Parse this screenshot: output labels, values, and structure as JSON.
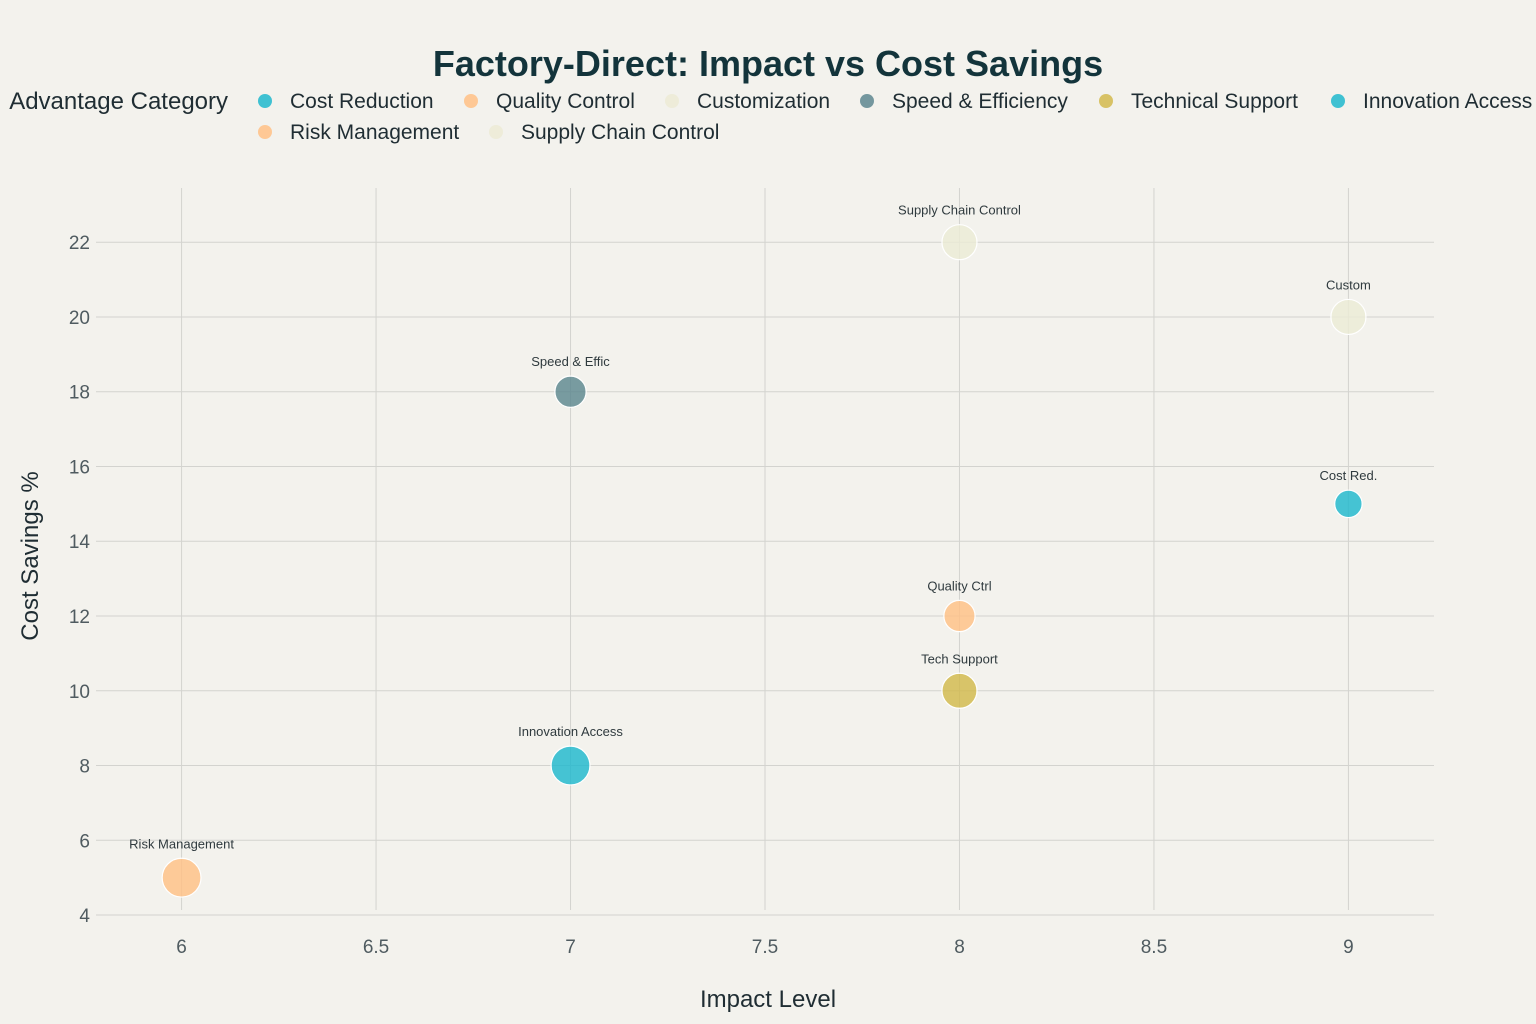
{
  "chart_data": {
    "type": "scatter",
    "title": "Factory-Direct: Impact vs Cost Savings",
    "xlabel": "Impact Level",
    "ylabel": "Cost Savings %",
    "xlim": [
      5.78,
      9.22
    ],
    "ylim": [
      3.6,
      23.45
    ],
    "x_ticks": [
      6,
      6.5,
      7,
      7.5,
      8,
      8.5,
      9
    ],
    "x_tick_labels": [
      "6",
      "6.5",
      "7",
      "7.5",
      "8",
      "8.5",
      "9"
    ],
    "y_ticks": [
      4,
      6,
      8,
      10,
      12,
      14,
      16,
      18,
      20,
      22
    ],
    "y_tick_labels": [
      "4",
      "6",
      "8",
      "10",
      "12",
      "14",
      "16",
      "18",
      "20",
      "22"
    ],
    "grid": true,
    "legend": {
      "title": "Advantage Category",
      "placement": "top",
      "entries": [
        {
          "name": "Cost Reduction",
          "color": "#1FB8CD"
        },
        {
          "name": "Quality Control",
          "color": "#FFC185"
        },
        {
          "name": "Customization",
          "color": "#ECEBD5"
        },
        {
          "name": "Speed & Efficiency",
          "color": "#5D878F"
        },
        {
          "name": "Technical Support",
          "color": "#D2BA4C"
        },
        {
          "name": "Innovation Access",
          "color": "#1FB8CD"
        },
        {
          "name": "Risk Management",
          "color": "#FFC185"
        },
        {
          "name": "Supply Chain Control",
          "color": "#ECEBD5"
        }
      ]
    },
    "series": [
      {
        "name": "Cost Reduction",
        "color": "#1FB8CD",
        "x": 9,
        "y": 15,
        "size": 3,
        "label": "Cost Red."
      },
      {
        "name": "Quality Control",
        "color": "#FFC185",
        "x": 8,
        "y": 12,
        "size": 4,
        "label": "Quality Ctrl"
      },
      {
        "name": "Customization",
        "color": "#ECEBD5",
        "x": 9,
        "y": 20,
        "size": 5,
        "label": "Custom"
      },
      {
        "name": "Speed & Efficiency",
        "color": "#5D878F",
        "x": 7,
        "y": 18,
        "size": 4,
        "label": "Speed & Effic"
      },
      {
        "name": "Technical Support",
        "color": "#D2BA4C",
        "x": 8,
        "y": 10,
        "size": 5,
        "label": "Tech Support"
      },
      {
        "name": "Innovation Access",
        "color": "#1FB8CD",
        "x": 7,
        "y": 8,
        "size": 6,
        "label": "Innovation Access"
      },
      {
        "name": "Risk Management",
        "color": "#FFC185",
        "x": 6,
        "y": 5,
        "size": 6,
        "label": "Risk Management"
      },
      {
        "name": "Supply Chain Control",
        "color": "#ECEBD5",
        "x": 8,
        "y": 22,
        "size": 5,
        "label": "Supply Chain Control"
      }
    ]
  }
}
